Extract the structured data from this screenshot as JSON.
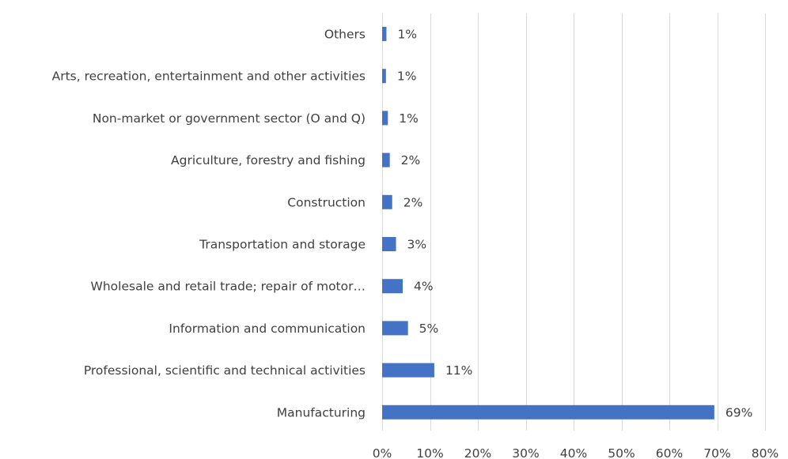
{
  "chart_data": {
    "type": "bar",
    "orientation": "horizontal",
    "title": "",
    "xlabel": "",
    "ylabel": "",
    "categories": [
      "Others",
      "Arts, recreation, entertainment and other activities",
      "Non-market or government sector (O and Q)",
      "Agriculture, forestry and fishing",
      "Construction",
      "Transportation and storage",
      "Wholesale and retail trade; repair of motor…",
      "Information and communication",
      "Professional, scientific and technical activities",
      "Manufacturing"
    ],
    "values": [
      0.9,
      0.8,
      1.2,
      1.6,
      2.1,
      2.9,
      4.3,
      5.4,
      10.9,
      69.4
    ],
    "data_labels": [
      "1%",
      "1%",
      "1%",
      "2%",
      "2%",
      "3%",
      "4%",
      "5%",
      "11%",
      "69%"
    ],
    "xlim": [
      0,
      80
    ],
    "x_ticks": [
      0,
      10,
      20,
      30,
      40,
      50,
      60,
      70,
      80
    ],
    "x_tick_labels": [
      "0%",
      "10%",
      "20%",
      "30%",
      "40%",
      "50%",
      "60%",
      "70%",
      "80%"
    ],
    "grid": "vertical",
    "legend": "none",
    "bar_color": "#4472c4"
  }
}
